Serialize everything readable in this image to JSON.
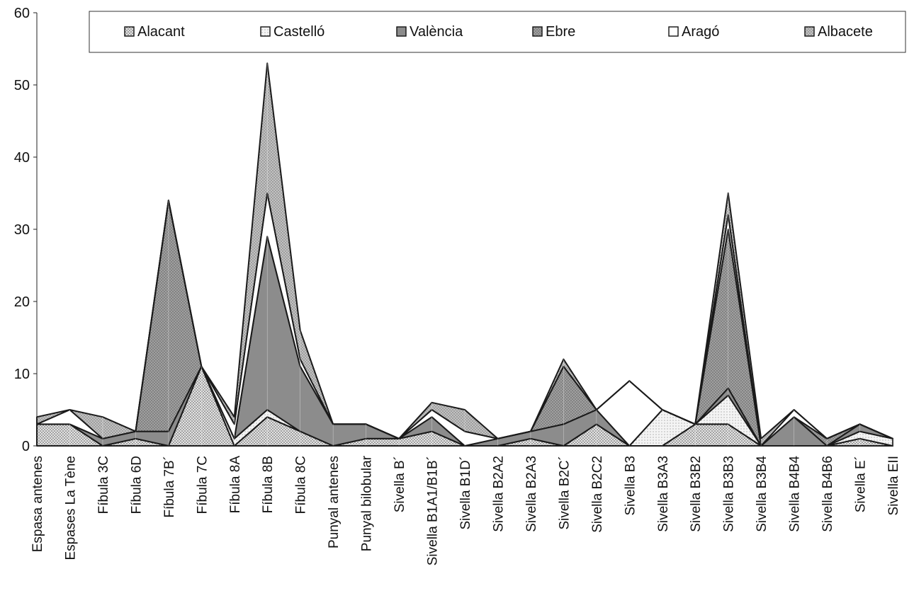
{
  "chart_data": {
    "type": "area",
    "stacked": true,
    "title": "",
    "xlabel": "",
    "ylabel": "",
    "ylim": [
      0,
      60
    ],
    "yticks": [
      0,
      10,
      20,
      30,
      40,
      50,
      60
    ],
    "grid": false,
    "legend_position": "top",
    "categories": [
      "Espasa antenes",
      "Espases La Tène",
      "Fíbula 3C",
      "Fíbula 6D",
      "Fíbula 7B´",
      "Fíbula 7C",
      "Fíbula 8A",
      "Fíbula 8B",
      "Fíbula 8C",
      "Punyal antenes",
      "Punyal bilobular",
      "Sivella B´",
      "Sivella B1A1/B1B´",
      "Sivella B1D´",
      "Sivella B2A2",
      "Sivella B2A3",
      "Sivella B2C´",
      "Sivella B2C2",
      "Sivella B3",
      "Sivella B3A3",
      "Sivella B3B2",
      "Sivella B3B3",
      "Sivella B3B4",
      "Sivella B4B4",
      "Sivella B4B6",
      "Sivella E´",
      "Sivella EII"
    ],
    "series": [
      {
        "name": "Alacant",
        "color": "#c9c9c9",
        "pattern": "dots",
        "values": [
          3,
          3,
          0,
          1,
          0,
          11,
          0,
          4,
          2,
          0,
          1,
          1,
          2,
          0,
          0,
          1,
          0,
          3,
          0,
          0,
          3,
          3,
          0,
          0,
          0,
          1,
          0
        ]
      },
      {
        "name": "Castelló",
        "color": "#eeeeee",
        "pattern": "dots",
        "values": [
          0,
          0,
          0,
          0,
          0,
          0,
          1,
          1,
          0,
          0,
          0,
          0,
          0,
          0,
          0,
          0,
          0,
          0,
          0,
          5,
          0,
          4,
          0,
          0,
          0,
          1,
          1
        ]
      },
      {
        "name": "València",
        "color": "#8c8c8c",
        "pattern": "solid",
        "values": [
          0,
          0,
          1,
          1,
          2,
          0,
          0,
          24,
          9,
          3,
          2,
          0,
          2,
          0,
          1,
          1,
          3,
          2,
          0,
          0,
          0,
          1,
          0,
          4,
          0,
          1,
          0
        ]
      },
      {
        "name": "Ebre",
        "color": "#9d9d9d",
        "pattern": "cross",
        "values": [
          0,
          0,
          0,
          0,
          32,
          0,
          0,
          0,
          0,
          0,
          0,
          0,
          0,
          0,
          0,
          0,
          8,
          0,
          0,
          0,
          0,
          22,
          0,
          0,
          1,
          0,
          0
        ]
      },
      {
        "name": "Aragó",
        "color": "#ffffff",
        "pattern": "none",
        "values": [
          0,
          2,
          0,
          0,
          0,
          0,
          2,
          6,
          1,
          0,
          0,
          0,
          1,
          2,
          0,
          0,
          0,
          0,
          9,
          0,
          0,
          2,
          0,
          1,
          0,
          0,
          0
        ]
      },
      {
        "name": "Albacete",
        "color": "#b2b2b2",
        "pattern": "dots",
        "values": [
          1,
          0,
          3,
          0,
          0,
          0,
          1,
          18,
          4,
          0,
          0,
          0,
          1,
          3,
          0,
          0,
          1,
          0,
          0,
          0,
          0,
          3,
          1,
          0,
          0,
          0,
          0
        ]
      }
    ]
  }
}
